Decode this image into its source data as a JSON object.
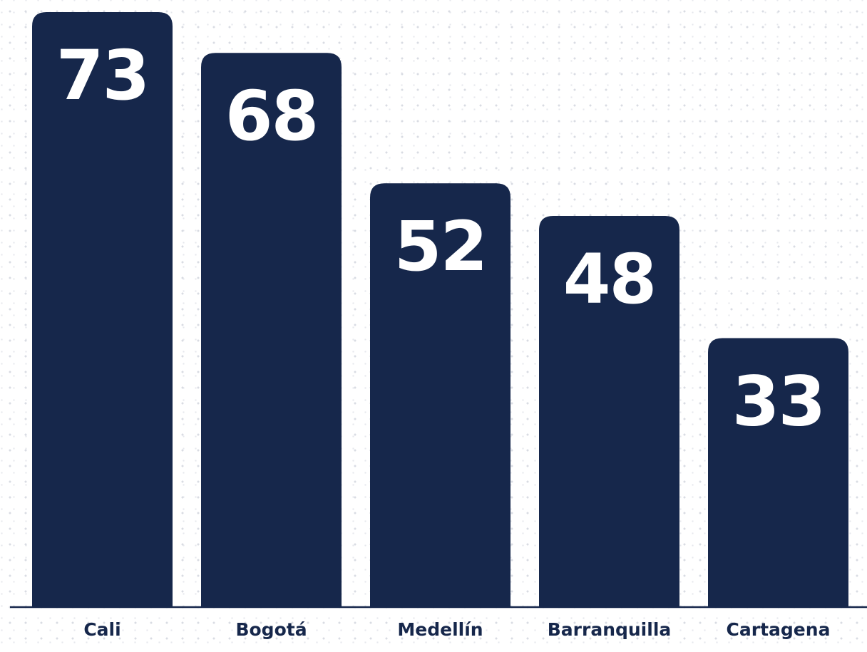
{
  "chart_data": {
    "type": "bar",
    "categories": [
      "Cali",
      "Bogotá",
      "Medellín",
      "Barranquilla",
      "Cartagena"
    ],
    "values": [
      73,
      68,
      52,
      48,
      33
    ],
    "value_labels": [
      "73",
      "68",
      "52",
      "48",
      "33"
    ],
    "title": "",
    "xlabel": "",
    "ylabel": "",
    "ylim": [
      0,
      73
    ],
    "grid": false,
    "legend": "none"
  },
  "colors": {
    "bar": "#16274b",
    "axis": "#16274b",
    "value_text": "#ffffff",
    "category_text": "#16274b",
    "background": "#ffffff"
  }
}
